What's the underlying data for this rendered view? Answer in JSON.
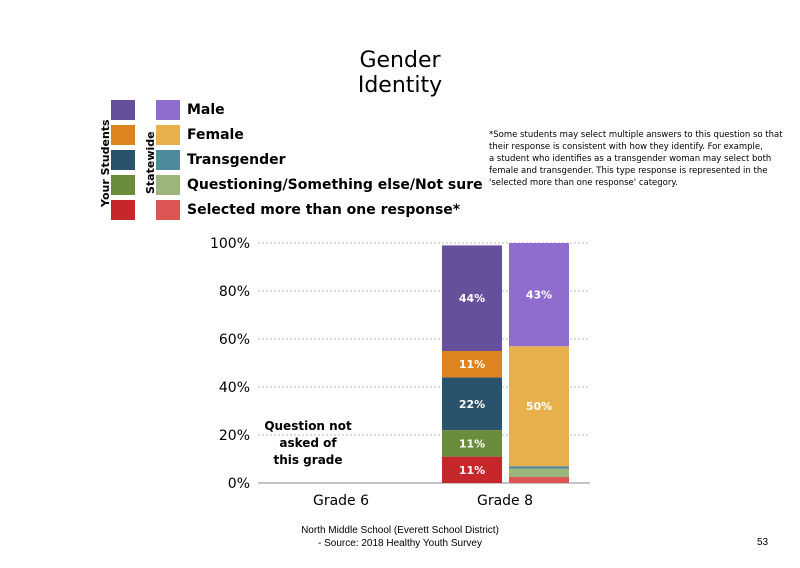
{
  "title_lines": [
    "Gender",
    "Identity"
  ],
  "legend": {
    "your_students_label": "Your Students",
    "statewide_label": "Statewide",
    "items": [
      {
        "label": "Male",
        "your_color": "#67509b",
        "state_color": "#8e6dcf"
      },
      {
        "label": "Female",
        "your_color": "#de8320",
        "state_color": "#e8b04b"
      },
      {
        "label": "Transgender",
        "your_color": "#28536a",
        "state_color": "#4d8a9d"
      },
      {
        "label": "Questioning/Something else/Not sure",
        "your_color": "#6a8d3c",
        "state_color": "#9bb57a"
      },
      {
        "label": "Selected more than one response*",
        "your_color": "#c5272a",
        "state_color": "#dc5754"
      }
    ]
  },
  "footnote_lines": [
    "*Some students may select multiple answers to this question so that",
    "their response is consistent with how they identify. For example,",
    "a student who identifies as a transgender woman may select both",
    "female and transgender. This type response is represented in the",
    "'selected more than one response' category."
  ],
  "chart_data": {
    "type": "bar",
    "stacked": true,
    "categories": [
      "Grade 6",
      "Grade 8"
    ],
    "yticks": [
      "0%",
      "20%",
      "40%",
      "60%",
      "80%",
      "100%"
    ],
    "ylim": [
      0,
      100
    ],
    "grid": true,
    "not_asked": {
      "category": "Grade 6",
      "lines": [
        "Question not",
        "asked of",
        "this grade"
      ]
    },
    "bars": [
      {
        "category": "Grade 8",
        "group": "Your Students",
        "segments": [
          {
            "series": "Selected more than one response*",
            "value": 11,
            "label": "11%",
            "color": "#c5272a"
          },
          {
            "series": "Questioning/Something else/Not sure",
            "value": 11,
            "label": "11%",
            "color": "#6a8d3c"
          },
          {
            "series": "Transgender",
            "value": 22,
            "label": "22%",
            "color": "#28536a"
          },
          {
            "series": "Female",
            "value": 11,
            "label": "11%",
            "color": "#de8320"
          },
          {
            "series": "Male",
            "value": 44,
            "label": "44%",
            "color": "#67509b"
          }
        ]
      },
      {
        "category": "Grade 8",
        "group": "Statewide",
        "segments": [
          {
            "series": "Selected more than one response*",
            "value": 2.5,
            "label": "",
            "color": "#dc5754"
          },
          {
            "series": "Questioning/Something else/Not sure",
            "value": 3.5,
            "label": "",
            "color": "#9bb57a"
          },
          {
            "series": "Transgender",
            "value": 1,
            "label": "",
            "color": "#4d8a9d"
          },
          {
            "series": "Female",
            "value": 50,
            "label": "50%",
            "color": "#e8b04b"
          },
          {
            "series": "Male",
            "value": 43,
            "label": "43%",
            "color": "#8e6dcf"
          }
        ]
      }
    ]
  },
  "source_lines": [
    "North Middle School (Everett School District)",
    "- Source: 2018 Healthy Youth Survey"
  ],
  "page_number": "53"
}
